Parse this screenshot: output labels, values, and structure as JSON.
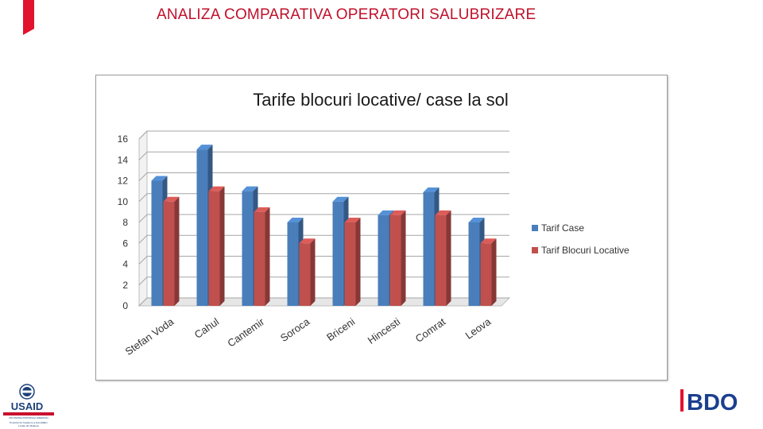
{
  "header": {
    "title": "ANALIZA COMPARATIVA OPERATORI SALUBRIZARE"
  },
  "colors": {
    "accent": "#e3122d",
    "title": "#c0102a",
    "series_case": "#4a7ebb",
    "series_blocuri": "#c0504d"
  },
  "logos": {
    "usaid_text": "USAID",
    "usaid_small_lines": [
      "DIN PARTEA POPORULUI AMERICAN",
      "Proiectul de Susținere a Autorităților",
      "Locale din Moldova"
    ],
    "bdo_text": "BDO"
  },
  "chart_data": {
    "type": "bar",
    "title": "Tarife blocuri locative/ case la sol",
    "categories": [
      "Stefan Voda",
      "Cahul",
      "Cantemir",
      "Soroca",
      "Briceni",
      "Hincesti",
      "Comrat",
      "Leova"
    ],
    "series": [
      {
        "name": "Tarif Case",
        "values": [
          12,
          15,
          11,
          8,
          10,
          8.7,
          10.9,
          8
        ]
      },
      {
        "name": "Tarif Blocuri Locative",
        "values": [
          10,
          11,
          9,
          6,
          8,
          8.7,
          8.7,
          6
        ]
      }
    ],
    "ylim": [
      0,
      16
    ],
    "yticks": [
      0,
      2,
      4,
      6,
      8,
      10,
      12,
      14,
      16
    ],
    "grid": true,
    "legend": "right",
    "style": "3d-clustered-column"
  }
}
